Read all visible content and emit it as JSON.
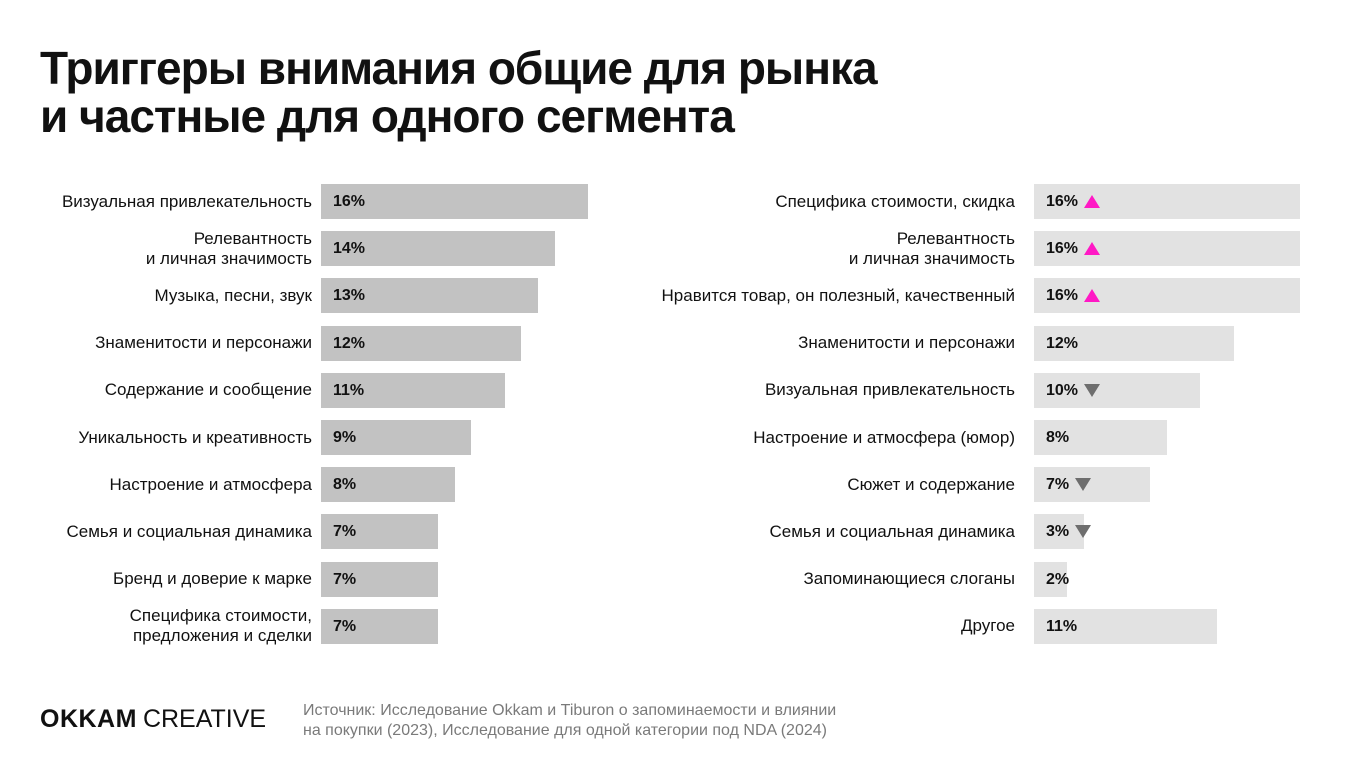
{
  "title": {
    "line1": "Триггеры внимания общие для рынка",
    "line2": "и частные для одного сегмента"
  },
  "colors": {
    "bar_left": "#c2c2c2",
    "bar_right": "#e2e2e2",
    "up_marker": "#ff19c5",
    "down_marker": "#6e6e6e"
  },
  "chart_data": [
    {
      "type": "bar",
      "orientation": "horizontal",
      "categories": [
        [
          "Визуальная привлекательность"
        ],
        [
          "Релевантность",
          "и личная значимость"
        ],
        [
          "Музыка, песни, звук"
        ],
        [
          "Знаменитости и персонажи"
        ],
        [
          "Содержание и сообщение"
        ],
        [
          "Уникальность и креативность"
        ],
        [
          "Настроение и атмосфера"
        ],
        [
          "Семья и социальная динамика"
        ],
        [
          "Бренд и доверие к марке"
        ],
        [
          "Специфика стоимости,",
          "предложения и сделки"
        ]
      ],
      "values": [
        16,
        14,
        13,
        12,
        11,
        9,
        8,
        7,
        7,
        7
      ],
      "value_labels": [
        "16%",
        "14%",
        "13%",
        "12%",
        "11%",
        "9%",
        "8%",
        "7%",
        "7%",
        "7%"
      ],
      "markers": [
        "",
        "",
        "",
        "",
        "",
        "",
        "",
        "",
        "",
        ""
      ],
      "xlim": [
        0,
        16
      ]
    },
    {
      "type": "bar",
      "orientation": "horizontal",
      "categories": [
        [
          "Специфика стоимости, скидка"
        ],
        [
          "Релевантность",
          "и личная значимость"
        ],
        [
          "Нравится товар, он полезный, качественный"
        ],
        [
          "Знаменитости и персонажи"
        ],
        [
          "Визуальная привлекательность"
        ],
        [
          "Настроение и атмосфера (юмор)"
        ],
        [
          "Сюжет и содержание"
        ],
        [
          "Семья и социальная динамика"
        ],
        [
          "Запоминающиеся слоганы"
        ],
        [
          "Другое"
        ]
      ],
      "values": [
        16,
        16,
        16,
        12,
        10,
        8,
        7,
        3,
        2,
        11
      ],
      "value_labels": [
        "16%",
        "16%",
        "16%",
        "12%",
        "10%",
        "8%",
        "7%",
        "3%",
        "2%",
        "11%"
      ],
      "markers": [
        "up",
        "up",
        "up",
        "",
        "down",
        "",
        "down",
        "down",
        "",
        ""
      ],
      "xlim": [
        0,
        16
      ]
    }
  ],
  "footer": {
    "logo_brand": "OKKAM",
    "logo_word": "CREATIVE",
    "source_line1": "Источник: Исследование Okkam и Tiburon о запоминаемости и влиянии",
    "source_line2": "на покупки (2023), Исследование для одной категории под NDA (2024)"
  }
}
